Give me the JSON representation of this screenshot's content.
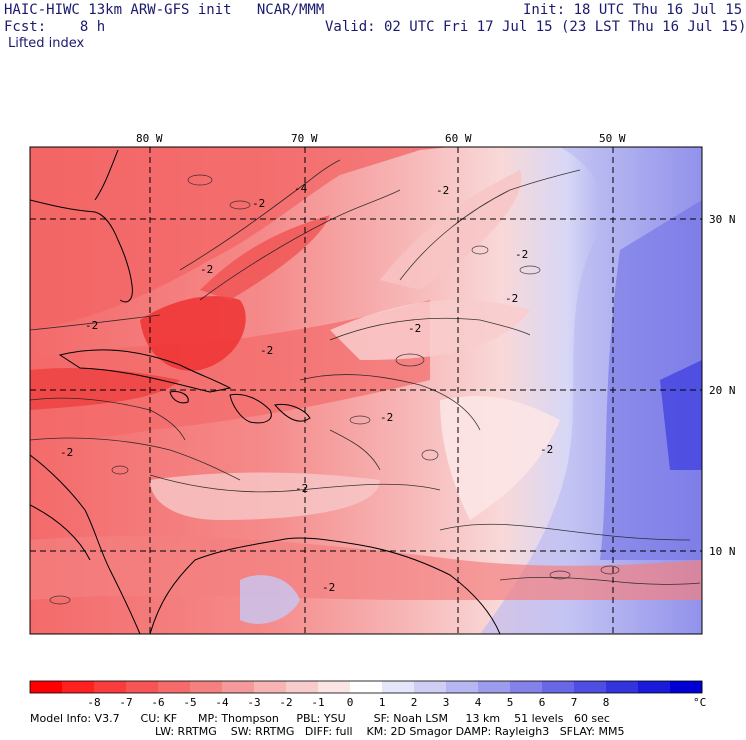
{
  "header": {
    "title_left": "HAIC-HIWC 13km ARW-GFS init   NCAR/MMM",
    "init_text": "Init: 18 UTC Thu 16 Jul 15",
    "fcst_label": "Fcst:    8 h",
    "valid_text": "Valid: 02 UTC Fri 17 Jul 15 (23 LST Thu 16 Jul 15)",
    "field_name": "Lifted index"
  },
  "map": {
    "lon_labels": [
      "80 W",
      "70 W",
      "60 W",
      "50 W"
    ],
    "lat_labels": [
      "30 N",
      "20 N",
      "10 N"
    ],
    "contour_labels": [
      "-2",
      "-2",
      "-2",
      "-2",
      "-2",
      "-2",
      "-2",
      "-2",
      "-4",
      "-2",
      "-2",
      "-2",
      "-2",
      "-2"
    ]
  },
  "colorbar": {
    "ticks": [
      "-8",
      "-7",
      "-6",
      "-5",
      "-4",
      "-3",
      "-2",
      "-1",
      "0",
      "1",
      "2",
      "3",
      "4",
      "5",
      "6",
      "7",
      "8"
    ],
    "unit": "°C",
    "colors": [
      "#ff0000",
      "#ff2020",
      "#fb3c3c",
      "#f75555",
      "#f56a6a",
      "#f58080",
      "#f59a9a",
      "#f7b4b4",
      "#f9cccc",
      "#fbe4e4",
      "#ffffff",
      "#e6e6fa",
      "#cfcff6",
      "#b6b6f2",
      "#9c9cee",
      "#8282ea",
      "#6868e6",
      "#4e4ee2",
      "#3434de",
      "#1a1ada",
      "#0000d6"
    ]
  },
  "footer": {
    "line1": "Model Info: V3.7      CU: KF      MP: Thompson     PBL: YSU        SF: Noah LSM     13 km    51 levels   60 sec",
    "line2": "LW: RRTMG    SW: RRTMG   DIFF: full    KM: 2D Smagor DAMP: Rayleigh3   SFLAY: MM5"
  }
}
